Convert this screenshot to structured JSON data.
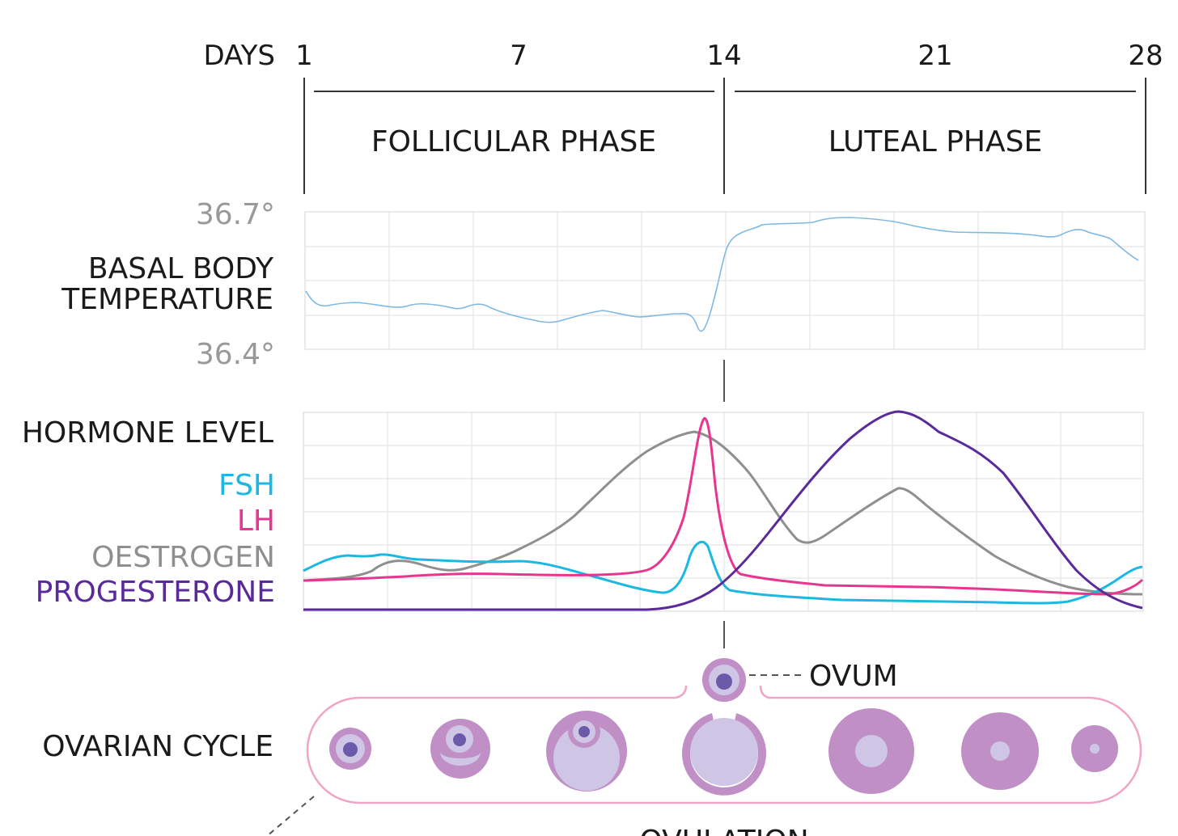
{
  "header": {
    "days_label": "DAYS",
    "ticks": [
      "1",
      "7",
      "14",
      "21",
      "28"
    ],
    "follicular": "FOLLICULAR PHASE",
    "luteal": "LUTEAL PHASE"
  },
  "temperature": {
    "label_line1": "BASAL BODY",
    "label_line2": "TEMPERATURE",
    "max": "36.7°",
    "min": "36.4°",
    "color": "#8cc3e6"
  },
  "hormones": {
    "title": "HORMONE LEVEL",
    "fsh": {
      "label": "FSH",
      "color": "#1ab8e3"
    },
    "lh": {
      "label": "LH",
      "color": "#e8358f"
    },
    "oestrogen": {
      "label": "OESTROGEN",
      "color": "#8f8f8f"
    },
    "progesterone": {
      "label": "PROGESTERONE",
      "color": "#5a2a9a"
    }
  },
  "ovarian": {
    "label": "OVARIAN CYCLE",
    "ovum_label": "OVUM",
    "ovulation_label": "OVULATION",
    "outer_color": "#c08fc6",
    "inner_color": "#cfc6e6",
    "nucleus_color": "#6a5aaa",
    "frame_color": "#f0a4c6"
  }
}
